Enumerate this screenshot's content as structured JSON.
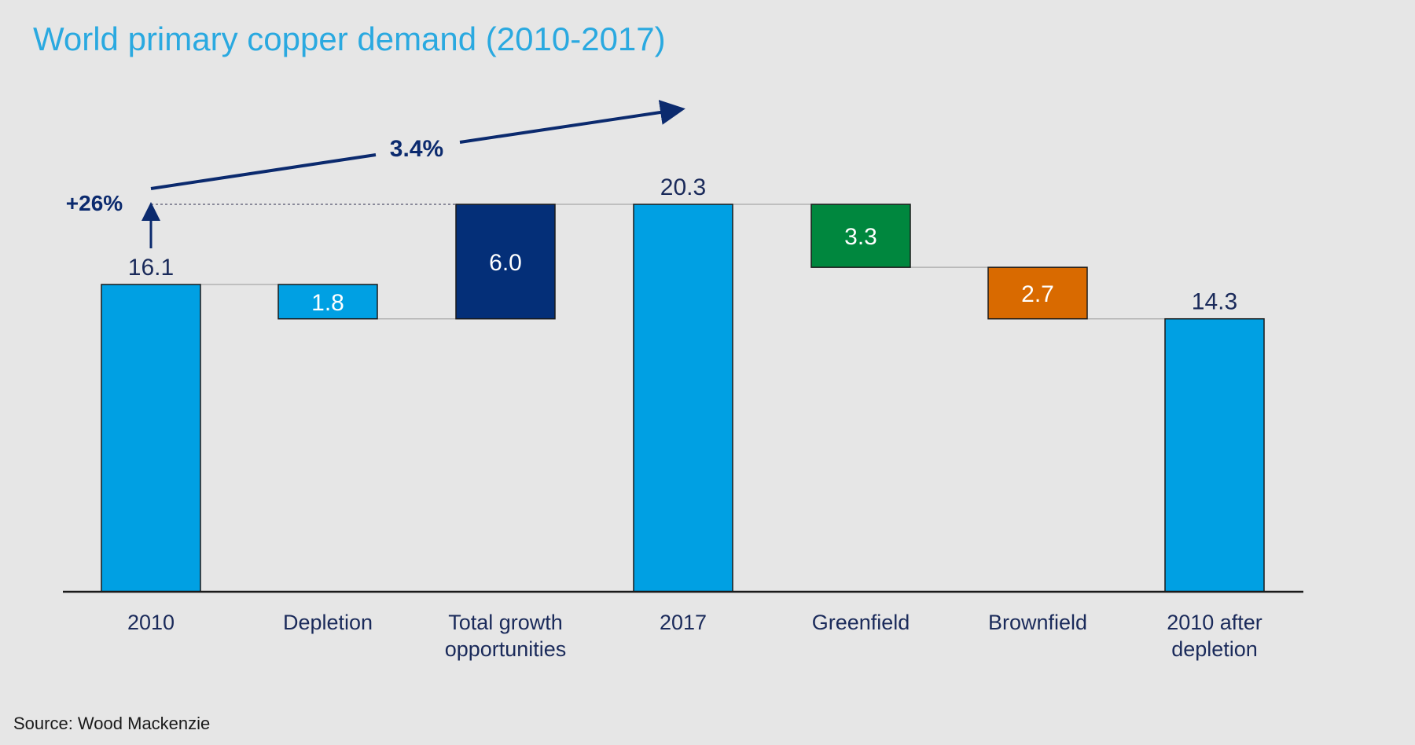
{
  "chart_data": {
    "type": "waterfall",
    "title": "World primary copper demand (2010-2017)",
    "categories": [
      [
        "2010"
      ],
      [
        "Depletion"
      ],
      [
        "Total growth",
        "opportunities"
      ],
      [
        "2017"
      ],
      [
        "Greenfield"
      ],
      [
        "Brownfield"
      ],
      [
        "2010 after",
        "depletion"
      ]
    ],
    "bars": [
      {
        "label": "2010",
        "value": 16.1,
        "from": 0,
        "to": 16.1,
        "value_label": "16.1",
        "color": "#00a0e3",
        "label_pos": "above"
      },
      {
        "label": "Depletion",
        "value": -1.8,
        "from": 14.3,
        "to": 16.1,
        "value_label": "1.8",
        "color": "#00a0e3",
        "label_pos": "inside"
      },
      {
        "label": "Total growth opportunities",
        "value": 6.0,
        "from": 14.3,
        "to": 20.3,
        "value_label": "6.0",
        "color": "#042f78",
        "label_pos": "inside"
      },
      {
        "label": "2017",
        "value": 20.3,
        "from": 0,
        "to": 20.3,
        "value_label": "20.3",
        "color": "#00a0e3",
        "label_pos": "above"
      },
      {
        "label": "Greenfield",
        "value": -3.3,
        "from": 17.0,
        "to": 20.3,
        "value_label": "3.3",
        "color": "#00873e",
        "label_pos": "inside"
      },
      {
        "label": "Brownfield",
        "value": -2.7,
        "from": 14.3,
        "to": 17.0,
        "value_label": "2.7",
        "color": "#d96a00",
        "label_pos": "inside"
      },
      {
        "label": "2010 after depletion",
        "value": 14.3,
        "from": 0,
        "to": 14.3,
        "value_label": "14.3",
        "color": "#00a0e3",
        "label_pos": "above"
      }
    ],
    "annotations": {
      "growth_total": "+26%",
      "cagr": "3.4%"
    },
    "annotation_color": "#0b2a6e",
    "ylim": [
      0,
      20.3
    ],
    "grid": false
  },
  "source": "Source: Wood Mackenzie"
}
